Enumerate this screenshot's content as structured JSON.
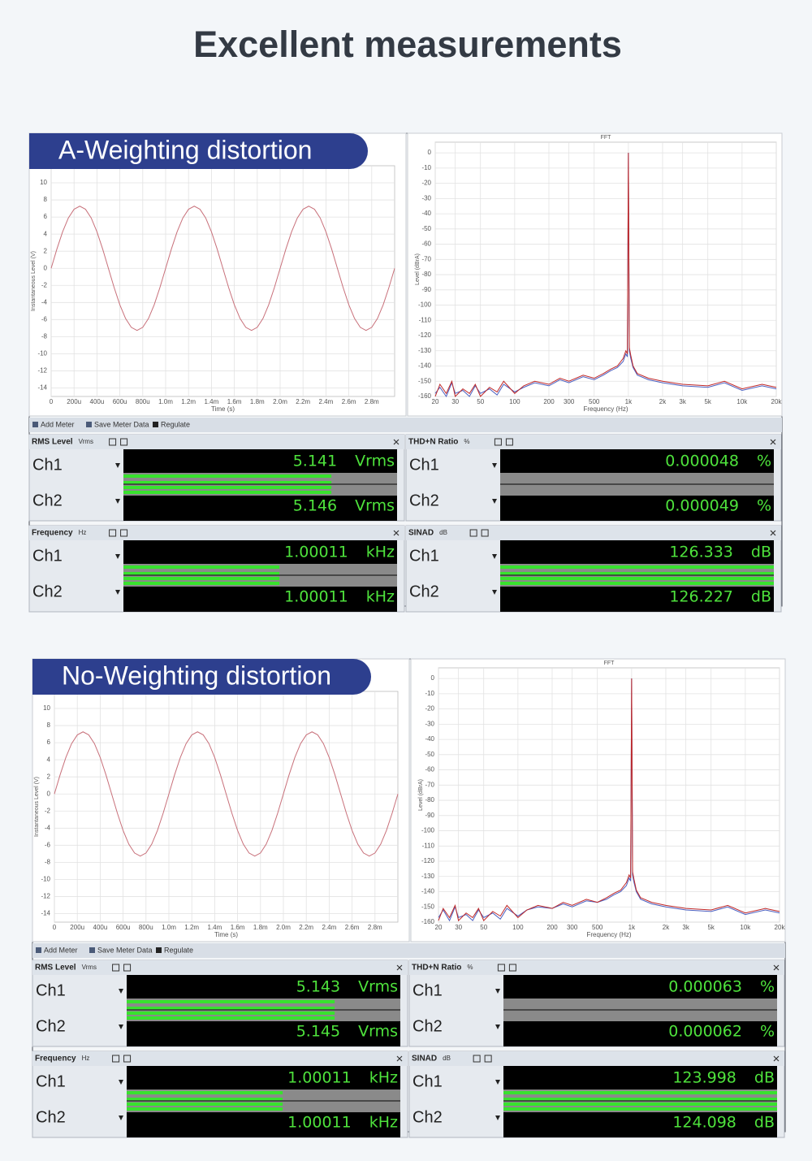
{
  "title": "Excellent measurements",
  "chart_data": [
    {
      "type": "line",
      "ylabel": "Instantaneous Level (V)",
      "xlabel": "Time (s)",
      "color": "#c8707a",
      "grid": true,
      "xlim": [
        0,
        0.003
      ],
      "ylim": [
        -15,
        12
      ],
      "xticks": [
        0,
        {
          "value": 0.0002,
          "label": "200u"
        },
        {
          "value": 0.0004,
          "label": "400u"
        },
        {
          "value": 0.0006,
          "label": "600u"
        },
        {
          "value": 0.0008,
          "label": "800u"
        },
        {
          "value": 0.001,
          "label": "1.0m"
        },
        {
          "value": 0.0012,
          "label": "1.2m"
        },
        {
          "value": 0.0014,
          "label": "1.4m"
        },
        {
          "value": 0.0016,
          "label": "1.6m"
        },
        {
          "value": 0.0018,
          "label": "1.8m"
        },
        {
          "value": 0.002,
          "label": "2.0m"
        },
        {
          "value": 0.0022,
          "label": "2.2m"
        },
        {
          "value": 0.0024,
          "label": "2.4m"
        },
        {
          "value": 0.0026,
          "label": "2.6m"
        },
        {
          "value": 0.0028,
          "label": "2.8m"
        }
      ],
      "yticks": [
        10,
        8,
        6,
        4,
        2,
        0,
        -2,
        -4,
        -6,
        -8,
        -10,
        -12,
        -14
      ],
      "x": [
        0,
        5e-05,
        0.0001,
        0.00015,
        0.0002,
        0.00025,
        0.0003,
        0.00035,
        0.0004,
        0.00045,
        0.0005,
        0.00055,
        0.0006,
        0.00065,
        0.0007,
        0.00075,
        0.0008,
        0.00085,
        0.0009,
        0.00095,
        0.001,
        0.00105,
        0.0011,
        0.00115,
        0.0012,
        0.00125,
        0.0013,
        0.00135,
        0.0014,
        0.00145,
        0.0015,
        0.00155,
        0.0016,
        0.00165,
        0.0017,
        0.00175,
        0.0018,
        0.00185,
        0.0019,
        0.00195,
        0.002,
        0.00205,
        0.0021,
        0.00215,
        0.0022,
        0.00225,
        0.0023,
        0.00235,
        0.0024,
        0.00245,
        0.0025,
        0.00255,
        0.0026,
        0.00265,
        0.0027,
        0.00275,
        0.0028,
        0.00285,
        0.0029,
        0.00295,
        0.003
      ],
      "values": [
        0,
        2.25,
        4.27,
        5.88,
        6.91,
        7.27,
        6.91,
        5.88,
        4.27,
        2.25,
        0,
        -2.25,
        -4.27,
        -5.88,
        -6.91,
        -7.27,
        -6.91,
        -5.88,
        -4.27,
        -2.25,
        0,
        2.25,
        4.27,
        5.88,
        6.91,
        7.27,
        6.91,
        5.88,
        4.27,
        2.25,
        0,
        -2.25,
        -4.27,
        -5.88,
        -6.91,
        -7.27,
        -6.91,
        -5.88,
        -4.27,
        -2.25,
        0,
        2.25,
        4.27,
        5.88,
        6.91,
        7.27,
        6.91,
        5.88,
        4.27,
        2.25,
        0,
        -2.25,
        -4.27,
        -5.88,
        -6.91,
        -7.27,
        -6.91,
        -5.88,
        -4.27,
        -2.25,
        0
      ]
    },
    {
      "type": "line",
      "title": "FFT",
      "ylabel": "Level (dBrA)",
      "xlabel": "Frequency (Hz)",
      "xscale": "log",
      "grid": true,
      "xlim": [
        20,
        20000
      ],
      "ylim": [
        -160,
        7
      ],
      "xticks": [
        20,
        30,
        50,
        100,
        200,
        300,
        500,
        {
          "value": 1000,
          "label": "1k"
        },
        {
          "value": 2000,
          "label": "2k"
        },
        {
          "value": 3000,
          "label": "3k"
        },
        {
          "value": 5000,
          "label": "5k"
        },
        {
          "value": 10000,
          "label": "10k"
        },
        {
          "value": 20000,
          "label": "20k"
        }
      ],
      "yticks": [
        0,
        -10,
        -20,
        -30,
        -40,
        -50,
        -60,
        -70,
        -80,
        -90,
        -100,
        -110,
        -120,
        -130,
        -140,
        -150,
        -160
      ],
      "x": [
        20,
        22,
        25,
        28,
        30,
        35,
        40,
        45,
        50,
        60,
        70,
        80,
        100,
        120,
        150,
        200,
        250,
        300,
        400,
        500,
        600,
        700,
        800,
        900,
        950,
        980,
        1000,
        1020,
        1050,
        1100,
        1200,
        1500,
        2000,
        3000,
        5000,
        7000,
        10000,
        15000,
        20000
      ],
      "series": [
        {
          "color": "#4a5fc0",
          "values": [
            -158,
            -154,
            -160,
            -151,
            -158,
            -156,
            -160,
            -153,
            -158,
            -155,
            -159,
            -152,
            -157,
            -154,
            -151,
            -153,
            -149,
            -151,
            -147,
            -149,
            -146,
            -143,
            -141,
            -137,
            -132,
            -134,
            0,
            -130,
            -135,
            -141,
            -146,
            -149,
            -151,
            -153,
            -154,
            -151,
            -156,
            -153,
            -155
          ]
        },
        {
          "color": "#c02828",
          "values": [
            -160,
            -152,
            -158,
            -150,
            -160,
            -155,
            -158,
            -152,
            -160,
            -154,
            -157,
            -150,
            -158,
            -153,
            -150,
            -152,
            -148,
            -150,
            -146,
            -148,
            -145,
            -142,
            -140,
            -135,
            -130,
            -132,
            0,
            -128,
            -133,
            -140,
            -145,
            -148,
            -150,
            -152,
            -153,
            -150,
            -155,
            -152,
            -154
          ]
        }
      ]
    },
    {
      "type": "line",
      "ylabel": "Instantaneous Level (V)",
      "xlabel": "Time (s)",
      "color": "#c8707a",
      "grid": true,
      "xlim": [
        0,
        0.003
      ],
      "ylim": [
        -15,
        12
      ],
      "xticks": [
        0,
        {
          "value": 0.0002,
          "label": "200u"
        },
        {
          "value": 0.0004,
          "label": "400u"
        },
        {
          "value": 0.0006,
          "label": "600u"
        },
        {
          "value": 0.0008,
          "label": "800u"
        },
        {
          "value": 0.001,
          "label": "1.0m"
        },
        {
          "value": 0.0012,
          "label": "1.2m"
        },
        {
          "value": 0.0014,
          "label": "1.4m"
        },
        {
          "value": 0.0016,
          "label": "1.6m"
        },
        {
          "value": 0.0018,
          "label": "1.8m"
        },
        {
          "value": 0.002,
          "label": "2.0m"
        },
        {
          "value": 0.0022,
          "label": "2.2m"
        },
        {
          "value": 0.0024,
          "label": "2.4m"
        },
        {
          "value": 0.0026,
          "label": "2.6m"
        },
        {
          "value": 0.0028,
          "label": "2.8m"
        }
      ],
      "yticks": [
        10,
        8,
        6,
        4,
        2,
        0,
        -2,
        -4,
        -6,
        -8,
        -10,
        -12,
        -14
      ],
      "x": [
        0,
        5e-05,
        0.0001,
        0.00015,
        0.0002,
        0.00025,
        0.0003,
        0.00035,
        0.0004,
        0.00045,
        0.0005,
        0.00055,
        0.0006,
        0.00065,
        0.0007,
        0.00075,
        0.0008,
        0.00085,
        0.0009,
        0.00095,
        0.001,
        0.00105,
        0.0011,
        0.00115,
        0.0012,
        0.00125,
        0.0013,
        0.00135,
        0.0014,
        0.00145,
        0.0015,
        0.00155,
        0.0016,
        0.00165,
        0.0017,
        0.00175,
        0.0018,
        0.00185,
        0.0019,
        0.00195,
        0.002,
        0.00205,
        0.0021,
        0.00215,
        0.0022,
        0.00225,
        0.0023,
        0.00235,
        0.0024,
        0.00245,
        0.0025,
        0.00255,
        0.0026,
        0.00265,
        0.0027,
        0.00275,
        0.0028,
        0.00285,
        0.0029,
        0.00295,
        0.003
      ],
      "values": [
        0,
        2.25,
        4.27,
        5.88,
        6.91,
        7.27,
        6.91,
        5.88,
        4.27,
        2.25,
        0,
        -2.25,
        -4.27,
        -5.88,
        -6.91,
        -7.27,
        -6.91,
        -5.88,
        -4.27,
        -2.25,
        0,
        2.25,
        4.27,
        5.88,
        6.91,
        7.27,
        6.91,
        5.88,
        4.27,
        2.25,
        0,
        -2.25,
        -4.27,
        -5.88,
        -6.91,
        -7.27,
        -6.91,
        -5.88,
        -4.27,
        -2.25,
        0,
        2.25,
        4.27,
        5.88,
        6.91,
        7.27,
        6.91,
        5.88,
        4.27,
        2.25,
        0,
        -2.25,
        -4.27,
        -5.88,
        -6.91,
        -7.27,
        -6.91,
        -5.88,
        -4.27,
        -2.25,
        0
      ]
    },
    {
      "type": "line",
      "title": "FFT",
      "ylabel": "Level (dBrA)",
      "xlabel": "Frequency (Hz)",
      "xscale": "log",
      "grid": true,
      "xlim": [
        20,
        20000
      ],
      "ylim": [
        -160,
        7
      ],
      "xticks": [
        20,
        30,
        50,
        100,
        200,
        300,
        500,
        {
          "value": 1000,
          "label": "1k"
        },
        {
          "value": 2000,
          "label": "2k"
        },
        {
          "value": 3000,
          "label": "3k"
        },
        {
          "value": 5000,
          "label": "5k"
        },
        {
          "value": 10000,
          "label": "10k"
        },
        {
          "value": 20000,
          "label": "20k"
        }
      ],
      "yticks": [
        0,
        -10,
        -20,
        -30,
        -40,
        -50,
        -60,
        -70,
        -80,
        -90,
        -100,
        -110,
        -120,
        -130,
        -140,
        -150,
        -160
      ],
      "x": [
        20,
        22,
        25,
        28,
        30,
        35,
        40,
        45,
        50,
        60,
        70,
        80,
        100,
        120,
        150,
        200,
        250,
        300,
        400,
        500,
        600,
        700,
        800,
        900,
        950,
        980,
        1000,
        1020,
        1050,
        1100,
        1200,
        1500,
        2000,
        3000,
        5000,
        7000,
        10000,
        15000,
        20000
      ],
      "series": [
        {
          "color": "#4a5fc0",
          "values": [
            -157,
            -152,
            -159,
            -150,
            -157,
            -155,
            -159,
            -152,
            -157,
            -154,
            -158,
            -151,
            -156,
            -152,
            -150,
            -151,
            -148,
            -150,
            -146,
            -147,
            -145,
            -142,
            -140,
            -136,
            -131,
            -133,
            0,
            -129,
            -134,
            -140,
            -145,
            -148,
            -150,
            -152,
            -153,
            -150,
            -155,
            -152,
            -154
          ]
        },
        {
          "color": "#c02828",
          "values": [
            -159,
            -151,
            -157,
            -149,
            -159,
            -154,
            -157,
            -151,
            -159,
            -153,
            -156,
            -149,
            -157,
            -152,
            -149,
            -151,
            -147,
            -149,
            -145,
            -147,
            -144,
            -141,
            -139,
            -134,
            -129,
            -131,
            0,
            -127,
            -132,
            -139,
            -144,
            -147,
            -149,
            -151,
            -152,
            -149,
            -154,
            -151,
            -153
          ]
        }
      ]
    }
  ],
  "sections": [
    {
      "label": "A-Weighting distortion",
      "toolbar": [
        "Add Meter",
        "Save Meter Data",
        "Regulate"
      ],
      "meters": [
        {
          "name": "RMS Level",
          "unit": "Vrms",
          "channels": [
            {
              "name": "Ch1",
              "value": 5.141,
              "unit": "Vrms"
            },
            {
              "name": "Ch2",
              "value": 5.146,
              "unit": "Vrms"
            }
          ]
        },
        {
          "name": "THD+N Ratio",
          "unit": "%",
          "channels": [
            {
              "name": "Ch1",
              "value": 4.8e-05,
              "unit": "%"
            },
            {
              "name": "Ch2",
              "value": 4.9e-05,
              "unit": "%"
            }
          ]
        },
        {
          "name": "Frequency",
          "unit": "Hz",
          "channels": [
            {
              "name": "Ch1",
              "value": 1.00011,
              "unit": "kHz"
            },
            {
              "name": "Ch2",
              "value": 1.00011,
              "unit": "kHz"
            }
          ]
        },
        {
          "name": "SINAD",
          "unit": "dB",
          "channels": [
            {
              "name": "Ch1",
              "value": 126.333,
              "unit": "dB"
            },
            {
              "name": "Ch2",
              "value": 126.227,
              "unit": "dB"
            }
          ]
        }
      ]
    },
    {
      "label": "No-Weighting distortion",
      "toolbar": [
        "Add Meter",
        "Save Meter Data",
        "Regulate"
      ],
      "meters": [
        {
          "name": "RMS Level",
          "unit": "Vrms",
          "channels": [
            {
              "name": "Ch1",
              "value": 5.143,
              "unit": "Vrms"
            },
            {
              "name": "Ch2",
              "value": 5.145,
              "unit": "Vrms"
            }
          ]
        },
        {
          "name": "THD+N Ratio",
          "unit": "%",
          "channels": [
            {
              "name": "Ch1",
              "value": 6.3e-05,
              "unit": "%"
            },
            {
              "name": "Ch2",
              "value": 6.2e-05,
              "unit": "%"
            }
          ]
        },
        {
          "name": "Frequency",
          "unit": "Hz",
          "channels": [
            {
              "name": "Ch1",
              "value": 1.00011,
              "unit": "kHz"
            },
            {
              "name": "Ch2",
              "value": 1.00011,
              "unit": "kHz"
            }
          ]
        },
        {
          "name": "SINAD",
          "unit": "dB",
          "channels": [
            {
              "name": "Ch1",
              "value": 123.998,
              "unit": "dB"
            },
            {
              "name": "Ch2",
              "value": 124.098,
              "unit": "dB"
            }
          ]
        }
      ]
    }
  ]
}
